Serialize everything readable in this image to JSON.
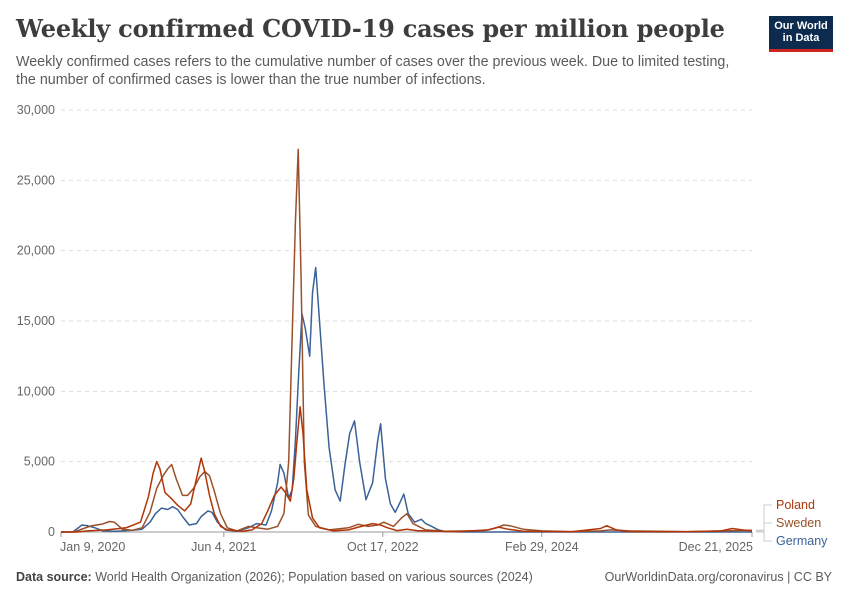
{
  "header": {
    "title": "Weekly confirmed COVID-19 cases per million people",
    "subtitle": "Weekly confirmed cases refers to the cumulative number of cases over the previous week. Due to limited testing, the number of confirmed cases is lower than the true number of infections.",
    "logo_line1": "Our World",
    "logo_line2": "in Data"
  },
  "footer": {
    "source_label": "Data source:",
    "source_text": "World Health Organization (2026); Population based on various sources (2024)",
    "url": "OurWorldinData.org/coronavirus | CC BY"
  },
  "chart_data": {
    "type": "line",
    "ylim": [
      0,
      30000
    ],
    "yticks": [
      0,
      5000,
      10000,
      15000,
      20000,
      25000,
      30000
    ],
    "ytick_labels": [
      "0",
      "5,000",
      "10,000",
      "15,000",
      "20,000",
      "25,000",
      "30,000"
    ],
    "xlim": [
      "2020-01-09",
      "2025-12-21"
    ],
    "xticks": [
      "2020-01-09",
      "2021-06-04",
      "2022-10-17",
      "2024-02-29",
      "2025-12-21"
    ],
    "xtick_labels": [
      "Jan 9, 2020",
      "Jun 4, 2021",
      "Oct 17, 2022",
      "Feb 29, 2024",
      "Dec 21, 2025"
    ],
    "grid": true,
    "legend_placement": "right",
    "series": [
      {
        "name": "Poland",
        "color": "#b13507",
        "points": [
          [
            "2020-01-09",
            0
          ],
          [
            "2020-03-01",
            0
          ],
          [
            "2020-04-01",
            80
          ],
          [
            "2020-06-01",
            150
          ],
          [
            "2020-08-01",
            300
          ],
          [
            "2020-09-15",
            700
          ],
          [
            "2020-10-10",
            2500
          ],
          [
            "2020-10-25",
            4200
          ],
          [
            "2020-11-05",
            5000
          ],
          [
            "2020-11-15",
            4500
          ],
          [
            "2020-12-01",
            2800
          ],
          [
            "2020-12-20",
            2400
          ],
          [
            "2021-01-10",
            1900
          ],
          [
            "2021-02-01",
            1500
          ],
          [
            "2021-02-20",
            2000
          ],
          [
            "2021-03-10",
            3800
          ],
          [
            "2021-03-25",
            5250
          ],
          [
            "2021-04-05",
            4300
          ],
          [
            "2021-04-20",
            2600
          ],
          [
            "2021-05-05",
            1300
          ],
          [
            "2021-05-25",
            400
          ],
          [
            "2021-06-15",
            150
          ],
          [
            "2021-08-01",
            50
          ],
          [
            "2021-09-01",
            150
          ],
          [
            "2021-10-01",
            600
          ],
          [
            "2021-10-20",
            1500
          ],
          [
            "2021-11-10",
            2600
          ],
          [
            "2021-12-01",
            3200
          ],
          [
            "2021-12-15",
            2800
          ],
          [
            "2021-12-30",
            2200
          ],
          [
            "2022-01-10",
            3800
          ],
          [
            "2022-01-20",
            6500
          ],
          [
            "2022-01-30",
            8900
          ],
          [
            "2022-02-08",
            7000
          ],
          [
            "2022-02-20",
            3000
          ],
          [
            "2022-03-10",
            1000
          ],
          [
            "2022-04-01",
            300
          ],
          [
            "2022-05-15",
            80
          ],
          [
            "2022-07-01",
            150
          ],
          [
            "2022-08-01",
            350
          ],
          [
            "2022-09-15",
            600
          ],
          [
            "2022-10-10",
            500
          ],
          [
            "2022-11-01",
            300
          ],
          [
            "2022-12-01",
            100
          ],
          [
            "2023-01-01",
            200
          ],
          [
            "2023-02-01",
            100
          ],
          [
            "2023-03-01",
            80
          ],
          [
            "2023-06-01",
            20
          ],
          [
            "2023-09-15",
            150
          ],
          [
            "2023-10-15",
            350
          ],
          [
            "2023-11-15",
            200
          ],
          [
            "2024-01-01",
            50
          ],
          [
            "2024-06-01",
            20
          ],
          [
            "2024-09-01",
            250
          ],
          [
            "2024-09-20",
            450
          ],
          [
            "2024-10-20",
            150
          ],
          [
            "2024-12-01",
            30
          ],
          [
            "2025-06-01",
            20
          ],
          [
            "2025-09-15",
            80
          ],
          [
            "2025-10-20",
            250
          ],
          [
            "2025-11-20",
            150
          ],
          [
            "2025-12-21",
            80
          ]
        ]
      },
      {
        "name": "Sweden",
        "color": "#9a5129",
        "points": [
          [
            "2020-01-09",
            0
          ],
          [
            "2020-02-20",
            0
          ],
          [
            "2020-03-20",
            250
          ],
          [
            "2020-04-15",
            450
          ],
          [
            "2020-05-15",
            550
          ],
          [
            "2020-06-10",
            750
          ],
          [
            "2020-06-25",
            700
          ],
          [
            "2020-07-20",
            200
          ],
          [
            "2020-08-20",
            120
          ],
          [
            "2020-09-20",
            300
          ],
          [
            "2020-10-15",
            1400
          ],
          [
            "2020-11-05",
            3100
          ],
          [
            "2020-11-25",
            4000
          ],
          [
            "2020-12-10",
            4500
          ],
          [
            "2020-12-22",
            4800
          ],
          [
            "2021-01-05",
            3800
          ],
          [
            "2021-01-25",
            2600
          ],
          [
            "2021-02-10",
            2600
          ],
          [
            "2021-03-01",
            3100
          ],
          [
            "2021-03-20",
            3900
          ],
          [
            "2021-04-05",
            4300
          ],
          [
            "2021-04-20",
            4000
          ],
          [
            "2021-05-05",
            2900
          ],
          [
            "2021-05-25",
            1300
          ],
          [
            "2021-06-15",
            300
          ],
          [
            "2021-07-15",
            80
          ],
          [
            "2021-08-20",
            400
          ],
          [
            "2021-09-15",
            300
          ],
          [
            "2021-10-20",
            200
          ],
          [
            "2021-11-20",
            400
          ],
          [
            "2021-12-10",
            1300
          ],
          [
            "2021-12-25",
            5000
          ],
          [
            "2022-01-05",
            14000
          ],
          [
            "2022-01-15",
            22000
          ],
          [
            "2022-01-24",
            27200
          ],
          [
            "2022-02-02",
            18000
          ],
          [
            "2022-02-12",
            5000
          ],
          [
            "2022-02-25",
            1200
          ],
          [
            "2022-03-20",
            400
          ],
          [
            "2022-05-01",
            150
          ],
          [
            "2022-07-01",
            300
          ],
          [
            "2022-08-01",
            550
          ],
          [
            "2022-09-01",
            400
          ],
          [
            "2022-10-01",
            500
          ],
          [
            "2022-10-20",
            700
          ],
          [
            "2022-11-20",
            400
          ],
          [
            "2022-12-15",
            1000
          ],
          [
            "2023-01-01",
            1300
          ],
          [
            "2023-01-20",
            600
          ],
          [
            "2023-03-01",
            150
          ],
          [
            "2023-05-01",
            50
          ],
          [
            "2023-09-01",
            100
          ],
          [
            "2023-10-10",
            300
          ],
          [
            "2023-11-01",
            500
          ],
          [
            "2023-11-20",
            450
          ],
          [
            "2024-01-01",
            200
          ],
          [
            "2024-03-01",
            80
          ],
          [
            "2024-06-01",
            30
          ],
          [
            "2024-09-01",
            80
          ],
          [
            "2024-10-01",
            150
          ],
          [
            "2024-12-01",
            80
          ],
          [
            "2025-06-01",
            30
          ],
          [
            "2025-10-01",
            80
          ],
          [
            "2025-12-21",
            120
          ]
        ]
      },
      {
        "name": "Germany",
        "color": "#3c6197",
        "points": [
          [
            "2020-01-09",
            0
          ],
          [
            "2020-02-15",
            0
          ],
          [
            "2020-03-15",
            500
          ],
          [
            "2020-04-01",
            450
          ],
          [
            "2020-04-25",
            300
          ],
          [
            "2020-05-20",
            80
          ],
          [
            "2020-07-01",
            60
          ],
          [
            "2020-08-20",
            120
          ],
          [
            "2020-09-20",
            200
          ],
          [
            "2020-10-15",
            700
          ],
          [
            "2020-11-01",
            1300
          ],
          [
            "2020-11-20",
            1700
          ],
          [
            "2020-12-10",
            1600
          ],
          [
            "2020-12-25",
            1800
          ],
          [
            "2021-01-10",
            1600
          ],
          [
            "2021-01-25",
            1100
          ],
          [
            "2021-02-15",
            500
          ],
          [
            "2021-03-10",
            600
          ],
          [
            "2021-03-25",
            1100
          ],
          [
            "2021-04-15",
            1500
          ],
          [
            "2021-04-28",
            1400
          ],
          [
            "2021-05-15",
            700
          ],
          [
            "2021-06-10",
            150
          ],
          [
            "2021-07-15",
            50
          ],
          [
            "2021-08-20",
            300
          ],
          [
            "2021-09-15",
            600
          ],
          [
            "2021-10-15",
            500
          ],
          [
            "2021-11-01",
            1500
          ],
          [
            "2021-11-20",
            3500
          ],
          [
            "2021-11-28",
            4800
          ],
          [
            "2021-12-10",
            4200
          ],
          [
            "2021-12-25",
            2400
          ],
          [
            "2022-01-05",
            3000
          ],
          [
            "2022-01-15",
            6500
          ],
          [
            "2022-01-25",
            11000
          ],
          [
            "2022-02-05",
            15500
          ],
          [
            "2022-02-15",
            14500
          ],
          [
            "2022-03-01",
            12500
          ],
          [
            "2022-03-10",
            17000
          ],
          [
            "2022-03-20",
            18800
          ],
          [
            "2022-04-01",
            15000
          ],
          [
            "2022-04-15",
            10500
          ],
          [
            "2022-05-01",
            6000
          ],
          [
            "2022-05-20",
            3000
          ],
          [
            "2022-06-05",
            2200
          ],
          [
            "2022-06-20",
            4800
          ],
          [
            "2022-07-05",
            7000
          ],
          [
            "2022-07-20",
            7900
          ],
          [
            "2022-08-05",
            5000
          ],
          [
            "2022-08-25",
            2300
          ],
          [
            "2022-09-15",
            3500
          ],
          [
            "2022-10-01",
            6500
          ],
          [
            "2022-10-10",
            7700
          ],
          [
            "2022-10-25",
            3800
          ],
          [
            "2022-11-10",
            2000
          ],
          [
            "2022-11-25",
            1400
          ],
          [
            "2022-12-10",
            2100
          ],
          [
            "2022-12-22",
            2700
          ],
          [
            "2023-01-05",
            1300
          ],
          [
            "2023-01-25",
            700
          ],
          [
            "2023-02-15",
            900
          ],
          [
            "2023-03-01",
            600
          ],
          [
            "2023-03-20",
            400
          ],
          [
            "2023-04-10",
            150
          ],
          [
            "2023-05-01",
            30
          ],
          [
            "2023-07-01",
            0
          ],
          [
            "2025-12-21",
            0
          ]
        ]
      }
    ]
  }
}
